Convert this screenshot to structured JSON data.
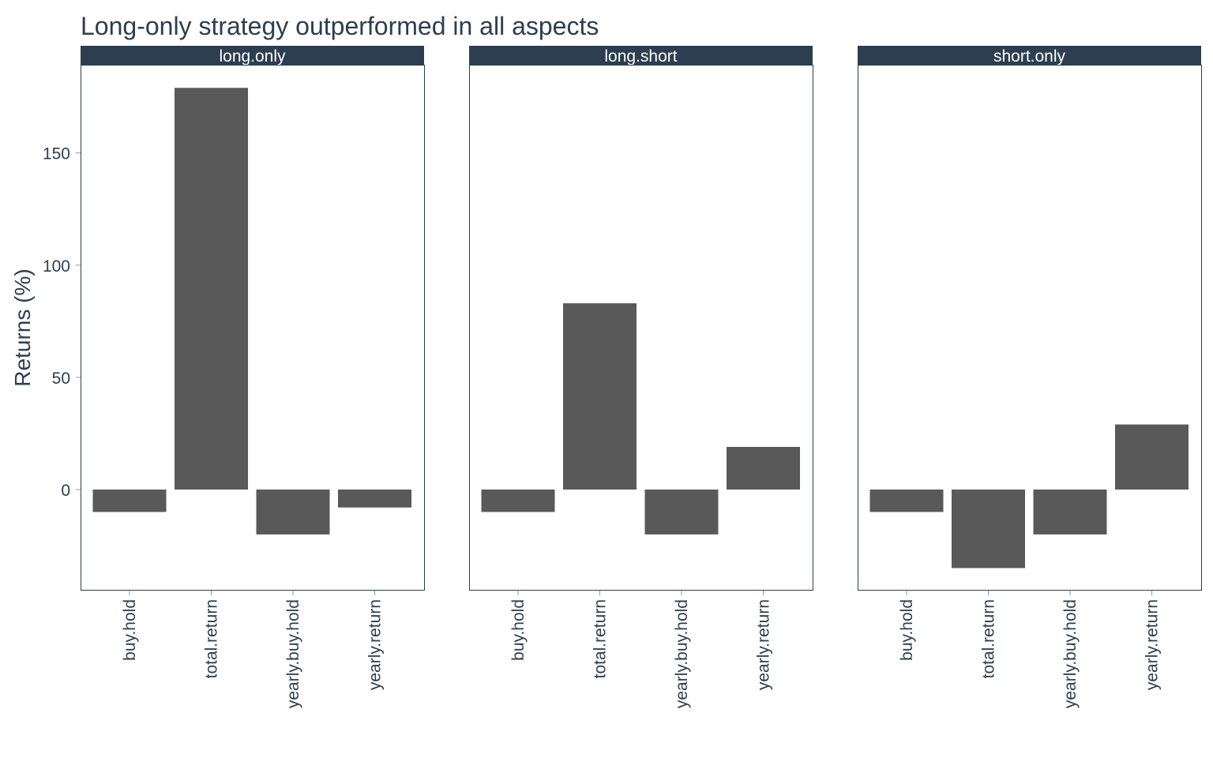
{
  "chart_data": {
    "type": "bar",
    "title": "Long-only strategy outperformed in all aspects",
    "xlabel": "",
    "ylabel": "Returns (%)",
    "ylim": [
      -45,
      190
    ],
    "yticks": [
      0,
      50,
      100,
      150
    ],
    "categories": [
      "buy.hold",
      "total.return",
      "yearly.buy.hold",
      "yearly.return"
    ],
    "facets": [
      {
        "name": "long.only",
        "values": [
          -10,
          179,
          -20,
          -8
        ]
      },
      {
        "name": "long.short",
        "values": [
          -10,
          83,
          -20,
          19
        ]
      },
      {
        "name": "short.only",
        "values": [
          -10,
          -35,
          -20,
          29
        ]
      }
    ],
    "grid": false,
    "legend": "none",
    "colors": {
      "bar": "#595959",
      "strip": "#2c3e50",
      "text": "#2c3e50",
      "background": "#ffffff"
    }
  }
}
